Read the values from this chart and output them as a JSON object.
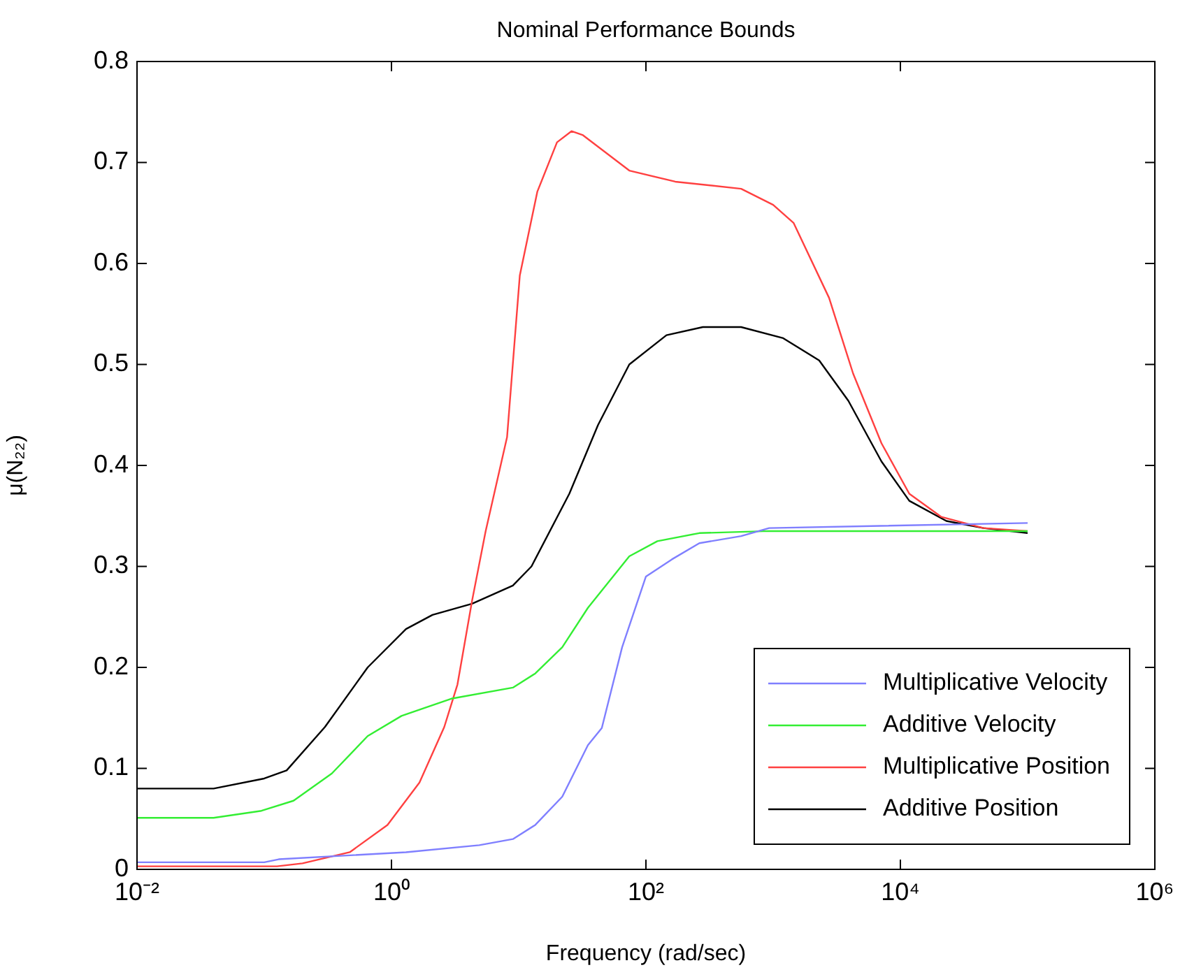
{
  "chart_data": {
    "type": "line",
    "title": "Nominal Performance Bounds",
    "xlabel": "Frequency (rad/sec)",
    "ylabel": "μ(N₂₂)",
    "log": "x",
    "grid": false,
    "legend": "bottom right",
    "marker": "none",
    "line_style": "solid",
    "xlim": [
      0.01,
      1000000
    ],
    "xticks": [
      {
        "value": 0.01,
        "label": "10⁻²"
      },
      {
        "value": 1,
        "label": "10⁰"
      },
      {
        "value": 100,
        "label": "10²"
      },
      {
        "value": 10000,
        "label": "10⁴"
      },
      {
        "value": 1000000,
        "label": "10⁶"
      }
    ],
    "ylim": [
      0,
      0.8
    ],
    "yticks": [
      0,
      0.1,
      0.2,
      0.3,
      0.4,
      0.5,
      0.6,
      0.7,
      0.8
    ],
    "series": [
      {
        "name": "Multiplicative Velocity",
        "color": "#7f7fff",
        "x": [
          0.01,
          0.1,
          0.13,
          1.3,
          4.9,
          9,
          13.5,
          22,
          35,
          45,
          65,
          100,
          160,
          263,
          560,
          930,
          100000
        ],
        "values": [
          0.007,
          0.007,
          0.01,
          0.017,
          0.024,
          0.03,
          0.044,
          0.072,
          0.123,
          0.14,
          0.22,
          0.29,
          0.307,
          0.323,
          0.33,
          0.338,
          0.343
        ]
      },
      {
        "name": "Additive Velocity",
        "color": "#33ee33",
        "x": [
          0.01,
          0.04,
          0.095,
          0.17,
          0.34,
          0.65,
          1.2,
          2.95,
          9,
          13.5,
          22,
          35,
          74,
          123,
          263,
          930,
          100000
        ],
        "values": [
          0.051,
          0.051,
          0.058,
          0.068,
          0.095,
          0.132,
          0.152,
          0.169,
          0.18,
          0.194,
          0.22,
          0.259,
          0.31,
          0.325,
          0.333,
          0.335,
          0.335
        ]
      },
      {
        "name": "Multiplicative Position",
        "color": "#ff4040",
        "x": [
          0.01,
          0.126,
          0.2,
          0.47,
          0.93,
          1.66,
          2.6,
          3.3,
          4.3,
          5.5,
          8.1,
          10.2,
          14,
          20,
          26,
          32,
          74,
          170,
          560,
          1000,
          1450,
          2750,
          4250,
          7100,
          11750,
          21000,
          45000,
          100000
        ],
        "values": [
          0.003,
          0.003,
          0.006,
          0.017,
          0.044,
          0.086,
          0.141,
          0.183,
          0.266,
          0.335,
          0.428,
          0.588,
          0.671,
          0.72,
          0.731,
          0.727,
          0.692,
          0.681,
          0.674,
          0.658,
          0.64,
          0.566,
          0.491,
          0.422,
          0.372,
          0.349,
          0.338,
          0.335
        ]
      },
      {
        "name": "Additive Position",
        "color": "#000000",
        "x": [
          0.01,
          0.04,
          0.1,
          0.15,
          0.3,
          0.65,
          1.3,
          2.1,
          4.3,
          9,
          12.6,
          25,
          42,
          74,
          145,
          280,
          560,
          1200,
          2300,
          3900,
          7100,
          11750,
          23000,
          45000,
          100000
        ],
        "values": [
          0.08,
          0.08,
          0.09,
          0.098,
          0.141,
          0.2,
          0.238,
          0.252,
          0.263,
          0.281,
          0.3,
          0.372,
          0.44,
          0.5,
          0.529,
          0.537,
          0.537,
          0.526,
          0.504,
          0.464,
          0.404,
          0.365,
          0.345,
          0.338,
          0.333
        ]
      }
    ]
  }
}
